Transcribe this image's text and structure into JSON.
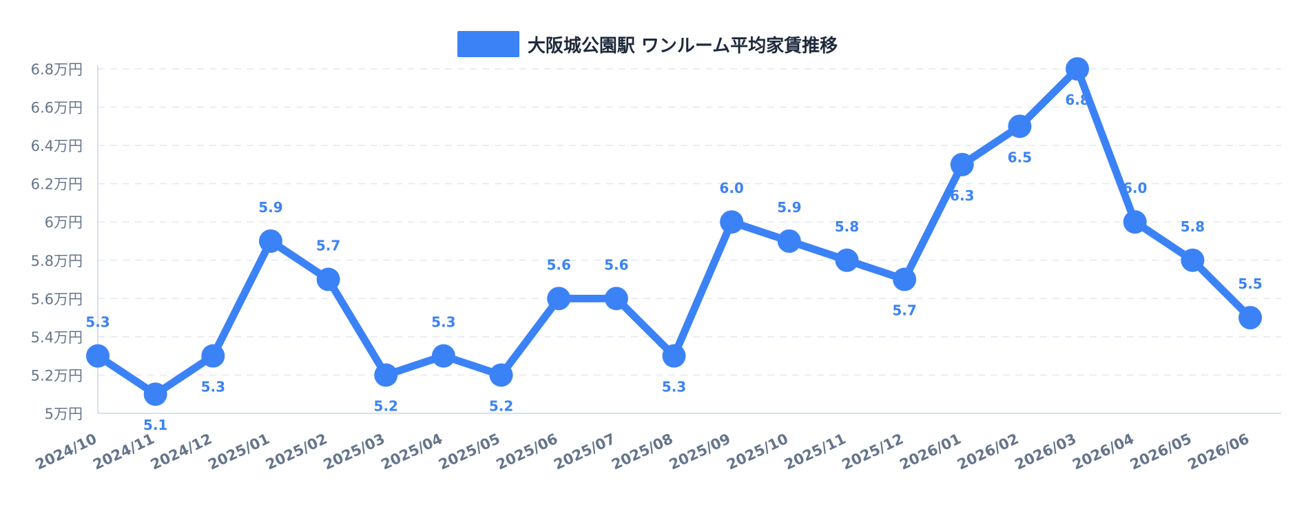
{
  "chart_data": {
    "type": "line",
    "categories": [
      "2024/10",
      "2024/11",
      "2024/12",
      "2025/01",
      "2025/02",
      "2025/03",
      "2025/04",
      "2025/05",
      "2025/06",
      "2025/07",
      "2025/08",
      "2025/09",
      "2025/10",
      "2025/11",
      "2025/12",
      "2026/01",
      "2026/02",
      "2026/03",
      "2026/04",
      "2026/05",
      "2026/06"
    ],
    "series": [
      {
        "name": "大阪城公園駅 ワンルーム平均家賃推移",
        "values": [
          5.3,
          5.1,
          5.3,
          5.9,
          5.7,
          5.2,
          5.3,
          5.2,
          5.6,
          5.6,
          5.3,
          6.0,
          5.9,
          5.8,
          5.7,
          6.3,
          6.5,
          6.8,
          6.0,
          5.8,
          5.5
        ]
      }
    ],
    "data_labels": [
      "5.3",
      "5.1",
      "5.3",
      "5.9",
      "5.7",
      "5.2",
      "5.3",
      "5.2",
      "5.6",
      "5.6",
      "5.3",
      "6.0",
      "5.9",
      "5.8",
      "5.7",
      "6.3",
      "6.5",
      "6.8",
      "6.0",
      "5.8",
      "5.5"
    ],
    "y_ticks": [
      5,
      5.2,
      5.4,
      5.6,
      5.8,
      6,
      6.2,
      6.4,
      6.6,
      6.8
    ],
    "y_tick_labels": [
      "5万円",
      "5.2万円",
      "5.4万円",
      "5.6万円",
      "5.8万円",
      "6万円",
      "6.2万円",
      "6.4万円",
      "6.6万円",
      "6.8万円"
    ],
    "ylim": [
      5,
      6.8
    ],
    "grid": true,
    "legend_position": "top-center",
    "colors": {
      "series": "#3b82f6",
      "label": "#3b82f6",
      "axis_text": "#64748b",
      "grid": "#e2e8f0",
      "legend_text": "#1e293b"
    }
  }
}
